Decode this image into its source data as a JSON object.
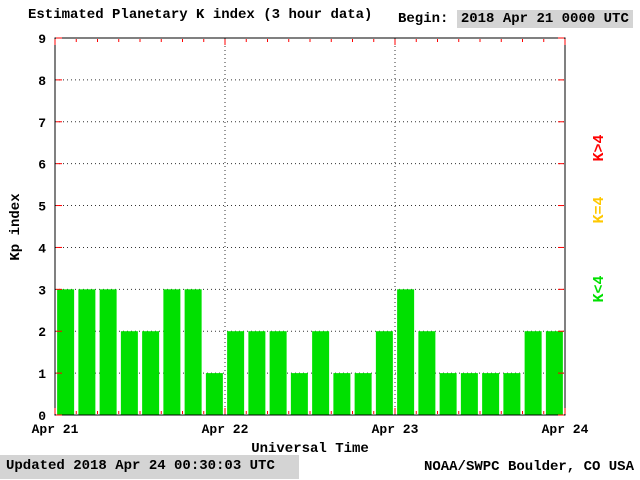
{
  "header": {
    "title": "Estimated Planetary K index (3 hour data)",
    "begin_label": "Begin:",
    "begin_value": "2018 Apr 21 0000 UTC"
  },
  "footer": {
    "updated": "Updated 2018 Apr 24 00:30:03 UTC",
    "attribution": "NOAA/SWPC Boulder, CO USA"
  },
  "colors": {
    "bar": "#00e000",
    "tick": "#ff0000",
    "grid": "#333333",
    "panel_gray": "#d4d4d4"
  },
  "chart_data": {
    "type": "bar",
    "title": "Estimated Planetary K index (3 hour data)",
    "xlabel": "Universal Time",
    "ylabel": "Kp index",
    "ylim": [
      0,
      9
    ],
    "y_ticks": [
      0,
      1,
      2,
      3,
      4,
      5,
      6,
      7,
      8,
      9
    ],
    "x_ticks": [
      "Apr 21",
      "Apr 22",
      "Apr 23",
      "Apr 24"
    ],
    "hours_per_bar": 3,
    "grid": true,
    "legend_position": "right",
    "values": [
      3,
      3,
      3,
      2,
      2,
      3,
      3,
      1,
      2,
      2,
      2,
      1,
      2,
      1,
      1,
      2,
      3,
      2,
      1,
      1,
      1,
      1,
      2,
      2
    ],
    "legend": [
      {
        "label": "K>4",
        "color": "#ff0000"
      },
      {
        "label": "K=4",
        "color": "#ffc800"
      },
      {
        "label": "K<4",
        "color": "#00e000"
      }
    ]
  }
}
